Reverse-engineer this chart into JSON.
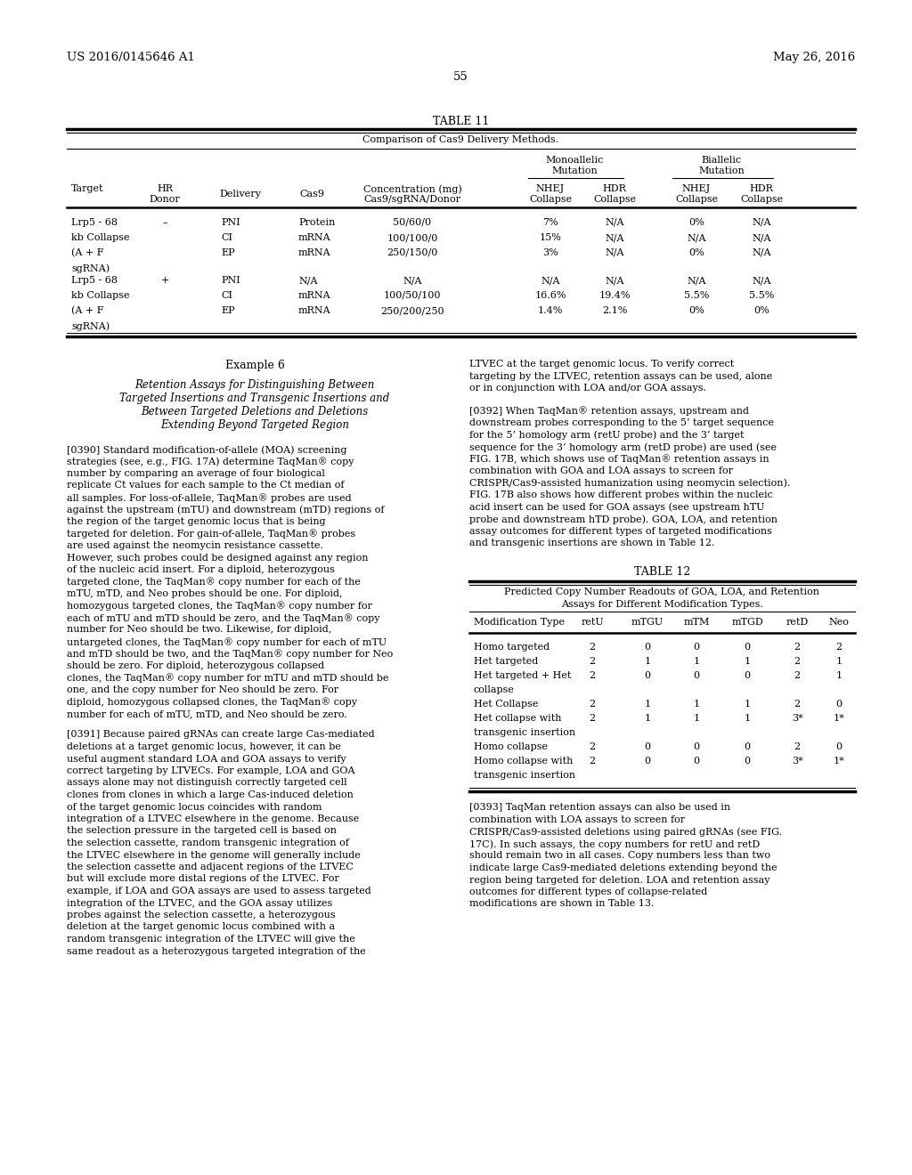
{
  "background_color": "#ffffff",
  "header_left": "US 2016/0145646 A1",
  "header_right": "May 26, 2016",
  "page_number": "55",
  "table11_title": "TABLE 11",
  "table11_subtitle": "Comparison of Cas9 Delivery Methods.",
  "table12_title": "TABLE 12",
  "table12_subtitle_line1": "Predicted Copy Number Readouts of GOA, LOA, and Retention",
  "table12_subtitle_line2": "Assays for Different Modification Types.",
  "table12_col_headers": [
    "Modification Type",
    "retU",
    "mTGU",
    "mTM",
    "mTGD",
    "retD",
    "Neo"
  ],
  "table12_rows": [
    [
      "Homo targeted",
      "2",
      "0",
      "0",
      "0",
      "2",
      "2"
    ],
    [
      "Het targeted",
      "2",
      "1",
      "1",
      "1",
      "2",
      "1"
    ],
    [
      "Het targeted + Het",
      "2",
      "0",
      "0",
      "0",
      "2",
      "1"
    ],
    [
      "collapse",
      "",
      "",
      "",
      "",
      "",
      ""
    ],
    [
      "Het Collapse",
      "2",
      "1",
      "1",
      "1",
      "2",
      "0"
    ],
    [
      "Het collapse with",
      "2",
      "1",
      "1",
      "1",
      "3*",
      "1*"
    ],
    [
      "transgenic insertion",
      "",
      "",
      "",
      "",
      "",
      ""
    ],
    [
      "Homo collapse",
      "2",
      "0",
      "0",
      "0",
      "2",
      "0"
    ],
    [
      "Homo collapse with",
      "2",
      "0",
      "0",
      "0",
      "3*",
      "1*"
    ],
    [
      "transgenic insertion",
      "",
      "",
      "",
      "",
      "",
      ""
    ]
  ],
  "example6_title": "Example 6",
  "example6_subtitle": [
    "Retention Assays for Distinguishing Between",
    "Targeted Insertions and Transgenic Insertions and",
    "Between Targeted Deletions and Deletions",
    "Extending Beyond Targeted Region"
  ],
  "para0390": "[0390]  Standard modification-of-allele (MOA) screening strategies (see, e.g., FIG. 17A) determine TaqMan® copy number by comparing an average of four biological replicate Ct values for each sample to the Ct median of all samples. For loss-of-allele, TaqMan® probes are used against the upstream (mTU) and downstream (mTD) regions of the region of the target genomic locus that is being targeted for deletion. For gain-of-allele, TaqMan® probes are used against the neomycin resistance cassette. However, such probes could be designed against any region of the nucleic acid insert. For a diploid, heterozygous targeted clone, the TaqMan® copy number for each of the mTU, mTD, and Neo probes should be one. For diploid, homozygous targeted clones, the TaqMan® copy number for each of mTU and mTD should be zero, and the TaqMan® copy number for Neo should be two. Likewise, for diploid, untargeted clones, the TaqMan® copy number for each of mTU and mTD should be two, and the TaqMan® copy number for Neo should be zero. For diploid, heterozygous collapsed clones, the TaqMan® copy number for mTU and mTD should be one, and the copy number for Neo should be zero. For diploid, homozygous collapsed clones, the TaqMan® copy number for each of mTU, mTD, and Neo should be zero.",
  "para0391": "[0391]  Because paired gRNAs can create large Cas-mediated deletions at a target genomic locus, however, it can be useful augment standard LOA and GOA assays to verify correct targeting by LTVECs. For example, LOA and GOA assays alone may not distinguish correctly targeted cell clones from clones in which a large Cas-induced deletion of the target genomic locus coincides with random integration of a LTVEC elsewhere in the genome. Because the selection pressure in the targeted cell is based on the selection cassette, random transgenic integration of the LTVEC elsewhere in the genome will generally include the selection cassette and adjacent regions of the LTVEC but will exclude more distal regions of the LTVEC. For example, if LOA and GOA assays are used to assess targeted integration of the LTVEC, and the GOA assay utilizes probes against the selection cassette, a heterozygous deletion at the target genomic locus combined with a random transgenic integration of the LTVEC will give the same readout as a heterozygous targeted integration of the",
  "right_para1": "LTVEC at the target genomic locus. To verify correct targeting by the LTVEC, retention assays can be used, alone or in conjunction with LOA and/or GOA assays.",
  "para0392": "[0392]  When TaqMan® retention assays, upstream and downstream probes corresponding to the 5’ target sequence for the 5’ homology arm (retU probe) and the 3’ target sequence for the 3’ homology arm (retD probe) are used (see FIG. 17B, which shows use of TaqMan® retention assays in combination with GOA and LOA assays to screen for CRISPR/Cas9-assisted humanization using neomycin selection). FIG. 17B also shows how different probes within the nucleic acid insert can be used for GOA assays (see upstream hTU probe and downstream hTD probe). GOA, LOA, and retention assay outcomes for different types of targeted modifications and transgenic insertions are shown in Table 12.",
  "para0393": "[0393]  TaqMan retention assays can also be used in combination with LOA assays to screen for CRISPR/Cas9-assisted deletions using paired gRNAs (see FIG. 17C). In such assays, the copy numbers for retU and retD should remain two in all cases. Copy numbers less than two indicate large Cas9-mediated deletions extending beyond the region being targeted for deletion. LOA and retention assay outcomes for different types of collapse-related modifications are shown in Table 13."
}
